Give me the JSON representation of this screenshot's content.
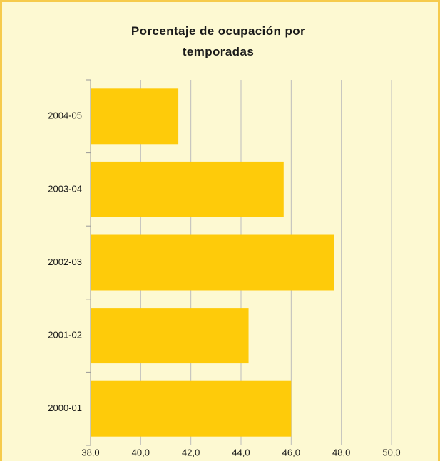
{
  "chart_data": {
    "type": "barh",
    "title": "Porcentaje de ocupación por temporadas",
    "categories": [
      "2004-05",
      "2003-04",
      "2002-03",
      "2001-02",
      "2000-01"
    ],
    "values": [
      41.5,
      45.7,
      47.7,
      44.3,
      46.0
    ],
    "color": "#fecb0a",
    "xlim": [
      38,
      50
    ],
    "xticks": [
      {
        "value": 38,
        "label": "38,0"
      },
      {
        "value": 40,
        "label": "40,0"
      },
      {
        "value": 42,
        "label": "42,0"
      },
      {
        "value": 44,
        "label": "44,0"
      },
      {
        "value": 46,
        "label": "46,0"
      },
      {
        "value": 48,
        "label": "48,0"
      },
      {
        "value": 50,
        "label": "50,0"
      }
    ],
    "grid": true
  }
}
